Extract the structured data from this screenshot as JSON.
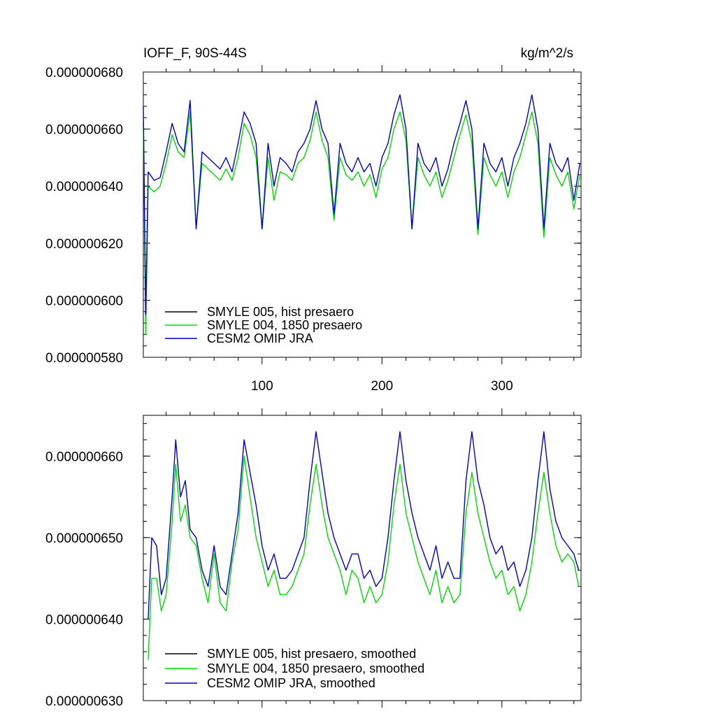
{
  "chart_data": [
    {
      "type": "line",
      "title": "IOFF_F, 90S-44S",
      "title_right": "kg/m^2/s",
      "xlim": [
        1,
        366
      ],
      "ylim": [
        5.8e-07,
        6.8e-07
      ],
      "x_ticks": [
        100,
        200,
        300
      ],
      "x_tick_labels": [
        "100",
        "200",
        "300"
      ],
      "y_ticks": [
        5.8e-07,
        6e-07,
        6.2e-07,
        6.4e-07,
        6.6e-07,
        6.8e-07
      ],
      "y_tick_labels": [
        "0.000000580",
        "0.000000600",
        "0.000000620",
        "0.000000640",
        "0.000000660",
        "0.000000680"
      ],
      "legend_position": "bottom-left",
      "series": [
        {
          "name": "SMYLE 005, hist presaero",
          "color": "#000000",
          "visible_in_plot": false
        },
        {
          "name": "SMYLE 004, 1850 presaero",
          "color": "#00dd00"
        },
        {
          "name": "CESM2 OMIP JRA",
          "color": "#0000cc"
        }
      ],
      "approx_points": {
        "x": [
          1,
          3,
          5,
          10,
          15,
          20,
          25,
          30,
          35,
          40,
          45,
          50,
          55,
          60,
          65,
          70,
          75,
          80,
          85,
          90,
          95,
          100,
          105,
          110,
          115,
          120,
          125,
          130,
          135,
          140,
          145,
          150,
          155,
          160,
          165,
          170,
          175,
          180,
          185,
          190,
          195,
          200,
          205,
          210,
          215,
          220,
          225,
          230,
          235,
          240,
          245,
          250,
          255,
          260,
          265,
          270,
          275,
          280,
          285,
          290,
          295,
          300,
          305,
          310,
          315,
          320,
          325,
          330,
          335,
          340,
          345,
          350,
          355,
          360,
          365
        ],
        "cesm2_omip_jra": [
          6.68e-07,
          5.95e-07,
          6.45e-07,
          6.42e-07,
          6.43e-07,
          6.52e-07,
          6.62e-07,
          6.55e-07,
          6.52e-07,
          6.7e-07,
          6.25e-07,
          6.52e-07,
          6.5e-07,
          6.48e-07,
          6.46e-07,
          6.5e-07,
          6.45e-07,
          6.55e-07,
          6.66e-07,
          6.62e-07,
          6.55e-07,
          6.25e-07,
          6.55e-07,
          6.4e-07,
          6.5e-07,
          6.48e-07,
          6.45e-07,
          6.52e-07,
          6.55e-07,
          6.6e-07,
          6.7e-07,
          6.6e-07,
          6.55e-07,
          6.3e-07,
          6.55e-07,
          6.48e-07,
          6.45e-07,
          6.5e-07,
          6.45e-07,
          6.48e-07,
          6.4e-07,
          6.5e-07,
          6.55e-07,
          6.65e-07,
          6.72e-07,
          6.6e-07,
          6.25e-07,
          6.55e-07,
          6.48e-07,
          6.45e-07,
          6.5e-07,
          6.4e-07,
          6.46e-07,
          6.55e-07,
          6.62e-07,
          6.7e-07,
          6.6e-07,
          6.25e-07,
          6.55e-07,
          6.48e-07,
          6.45e-07,
          6.5e-07,
          6.4e-07,
          6.5e-07,
          6.55e-07,
          6.62e-07,
          6.72e-07,
          6.6e-07,
          6.25e-07,
          6.55e-07,
          6.48e-07,
          6.45e-07,
          6.5e-07,
          6.35e-07,
          6.48e-07
        ],
        "smyle_004_1850_presaero": [
          6.62e-07,
          5.88e-07,
          6.4e-07,
          6.38e-07,
          6.4e-07,
          6.48e-07,
          6.58e-07,
          6.52e-07,
          6.5e-07,
          6.66e-07,
          6.25e-07,
          6.48e-07,
          6.46e-07,
          6.44e-07,
          6.42e-07,
          6.46e-07,
          6.42e-07,
          6.5e-07,
          6.62e-07,
          6.58e-07,
          6.5e-07,
          6.25e-07,
          6.5e-07,
          6.35e-07,
          6.45e-07,
          6.44e-07,
          6.42e-07,
          6.48e-07,
          6.5e-07,
          6.56e-07,
          6.66e-07,
          6.56e-07,
          6.5e-07,
          6.28e-07,
          6.5e-07,
          6.44e-07,
          6.42e-07,
          6.45e-07,
          6.4e-07,
          6.44e-07,
          6.36e-07,
          6.46e-07,
          6.5e-07,
          6.6e-07,
          6.66e-07,
          6.56e-07,
          6.25e-07,
          6.5e-07,
          6.44e-07,
          6.4e-07,
          6.45e-07,
          6.36e-07,
          6.42e-07,
          6.5e-07,
          6.58e-07,
          6.65e-07,
          6.55e-07,
          6.23e-07,
          6.5e-07,
          6.44e-07,
          6.4e-07,
          6.45e-07,
          6.36e-07,
          6.45e-07,
          6.5e-07,
          6.58e-07,
          6.66e-07,
          6.55e-07,
          6.22e-07,
          6.5e-07,
          6.44e-07,
          6.4e-07,
          6.45e-07,
          6.32e-07,
          6.44e-07
        ]
      }
    },
    {
      "type": "line",
      "xlim": [
        1,
        366
      ],
      "ylim": [
        6.3e-07,
        6.65e-07
      ],
      "x_ticks": [
        100,
        200,
        300
      ],
      "y_ticks": [
        6.3e-07,
        6.4e-07,
        6.5e-07,
        6.6e-07
      ],
      "y_tick_labels": [
        "0.000000630",
        "0.000000640",
        "0.000000650",
        "0.000000660"
      ],
      "legend_position": "bottom-left",
      "series": [
        {
          "name": "SMYLE 005, hist presaero, smoothed",
          "color": "#000000",
          "visible_in_plot": false
        },
        {
          "name": "SMYLE 004, 1850 presaero, smoothed",
          "color": "#00dd00"
        },
        {
          "name": "CESM2 OMIP JRA, smoothed",
          "color": "#0000cc"
        }
      ],
      "approx_points": {
        "x": [
          5,
          8,
          12,
          16,
          20,
          25,
          28,
          32,
          36,
          40,
          45,
          50,
          55,
          60,
          65,
          70,
          75,
          80,
          85,
          90,
          95,
          100,
          105,
          110,
          115,
          120,
          125,
          130,
          135,
          140,
          145,
          150,
          155,
          160,
          165,
          170,
          175,
          180,
          185,
          190,
          195,
          200,
          205,
          210,
          215,
          220,
          225,
          230,
          235,
          240,
          245,
          250,
          255,
          260,
          265,
          270,
          275,
          280,
          285,
          290,
          295,
          300,
          305,
          310,
          315,
          320,
          325,
          330,
          335,
          340,
          345,
          350,
          355,
          360,
          364
        ],
        "cesm2_omip_jra": [
          6.4e-07,
          6.5e-07,
          6.49e-07,
          6.43e-07,
          6.45e-07,
          6.55e-07,
          6.62e-07,
          6.55e-07,
          6.57e-07,
          6.51e-07,
          6.5e-07,
          6.46e-07,
          6.44e-07,
          6.49e-07,
          6.44e-07,
          6.43e-07,
          6.48e-07,
          6.53e-07,
          6.62e-07,
          6.58e-07,
          6.54e-07,
          6.49e-07,
          6.46e-07,
          6.48e-07,
          6.45e-07,
          6.45e-07,
          6.46e-07,
          6.48e-07,
          6.5e-07,
          6.57e-07,
          6.63e-07,
          6.58e-07,
          6.53e-07,
          6.5e-07,
          6.48e-07,
          6.46e-07,
          6.48e-07,
          6.48e-07,
          6.45e-07,
          6.46e-07,
          6.44e-07,
          6.45e-07,
          6.5e-07,
          6.57e-07,
          6.63e-07,
          6.57e-07,
          6.53e-07,
          6.5e-07,
          6.48e-07,
          6.46e-07,
          6.49e-07,
          6.45e-07,
          6.47e-07,
          6.45e-07,
          6.45e-07,
          6.57e-07,
          6.63e-07,
          6.57e-07,
          6.54e-07,
          6.5e-07,
          6.48e-07,
          6.49e-07,
          6.46e-07,
          6.47e-07,
          6.44e-07,
          6.46e-07,
          6.5e-07,
          6.57e-07,
          6.63e-07,
          6.56e-07,
          6.52e-07,
          6.5e-07,
          6.49e-07,
          6.48e-07,
          6.46e-07
        ],
        "smyle_004_1850_presaero": [
          6.35e-07,
          6.45e-07,
          6.45e-07,
          6.41e-07,
          6.43e-07,
          6.52e-07,
          6.59e-07,
          6.52e-07,
          6.54e-07,
          6.5e-07,
          6.49e-07,
          6.45e-07,
          6.42e-07,
          6.48e-07,
          6.42e-07,
          6.41e-07,
          6.47e-07,
          6.51e-07,
          6.6e-07,
          6.55e-07,
          6.5e-07,
          6.47e-07,
          6.44e-07,
          6.46e-07,
          6.43e-07,
          6.43e-07,
          6.44e-07,
          6.46e-07,
          6.48e-07,
          6.54e-07,
          6.59e-07,
          6.54e-07,
          6.5e-07,
          6.48e-07,
          6.46e-07,
          6.43e-07,
          6.46e-07,
          6.45e-07,
          6.42e-07,
          6.44e-07,
          6.42e-07,
          6.43e-07,
          6.47e-07,
          6.54e-07,
          6.59e-07,
          6.53e-07,
          6.5e-07,
          6.47e-07,
          6.45e-07,
          6.43e-07,
          6.46e-07,
          6.42e-07,
          6.44e-07,
          6.42e-07,
          6.43e-07,
          6.53e-07,
          6.58e-07,
          6.53e-07,
          6.5e-07,
          6.47e-07,
          6.45e-07,
          6.46e-07,
          6.43e-07,
          6.44e-07,
          6.41e-07,
          6.43e-07,
          6.47e-07,
          6.53e-07,
          6.58e-07,
          6.53e-07,
          6.49e-07,
          6.47e-07,
          6.48e-07,
          6.47e-07,
          6.44e-07
        ]
      }
    }
  ]
}
